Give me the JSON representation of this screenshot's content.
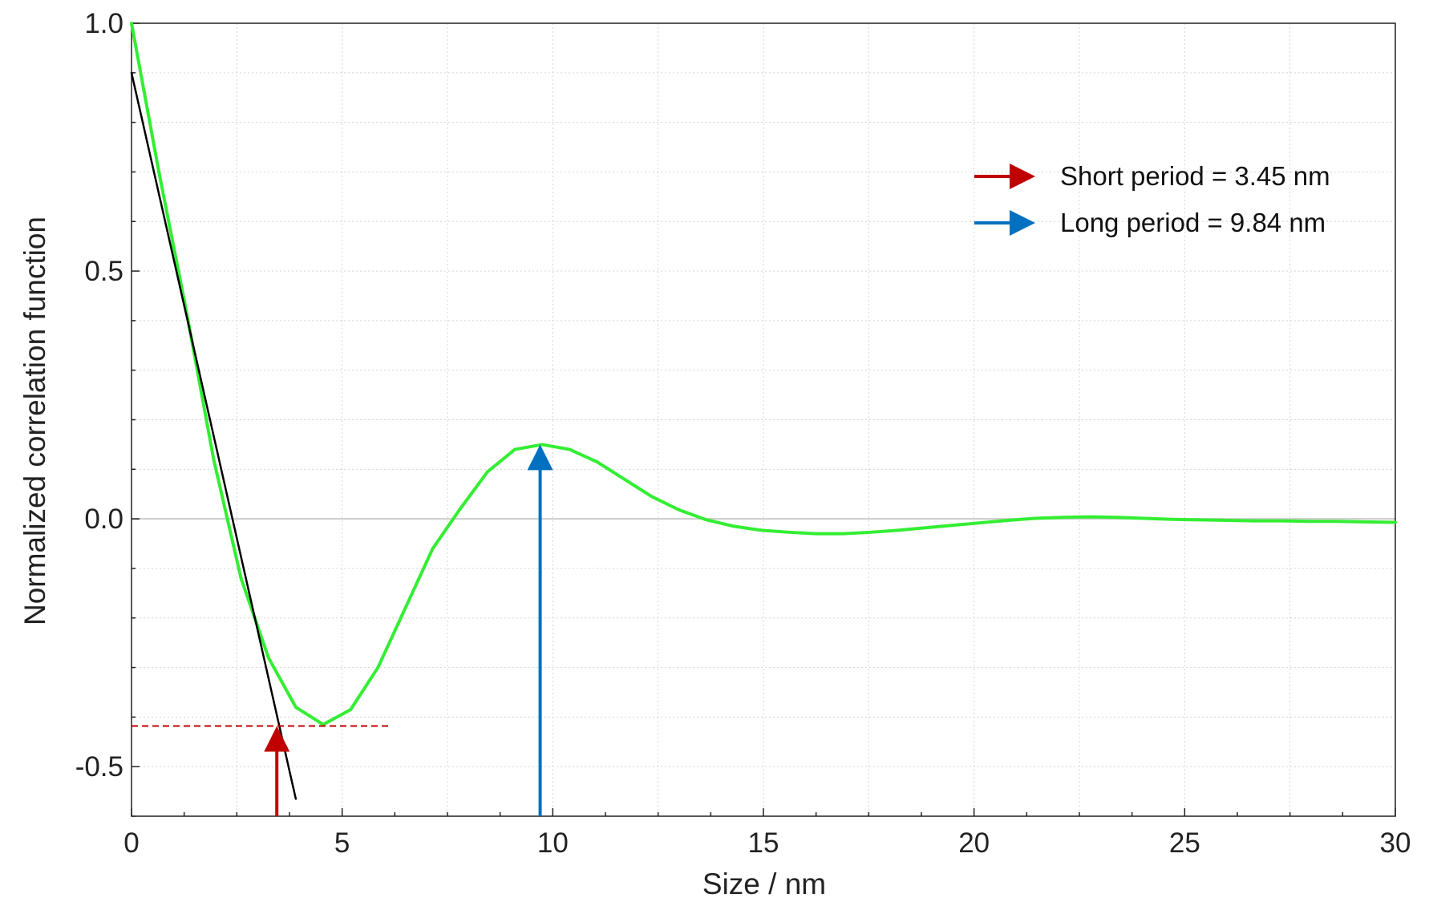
{
  "chart_data": {
    "type": "line",
    "xlabel": "Size / nm",
    "ylabel": "Normalized correlation function",
    "xlim": [
      0,
      30
    ],
    "ylim": [
      -0.6,
      1.0
    ],
    "x_ticks": [
      "0",
      "5",
      "10",
      "15",
      "20",
      "25",
      "30"
    ],
    "y_ticks": [
      "-0.5",
      "0.0",
      "0.5",
      "1.0"
    ],
    "grid": true,
    "legend_position": "top-right",
    "series": [
      {
        "color": "#33ee33",
        "x": [
          0,
          0.65,
          1.3,
          1.95,
          2.6,
          3.25,
          3.9,
          4.55,
          5.2,
          5.85,
          6.5,
          7.15,
          7.8,
          8.45,
          9.1,
          9.75,
          10.4,
          11.05,
          11.7,
          12.35,
          13.0,
          13.65,
          14.3,
          14.95,
          15.6,
          16.25,
          16.9,
          17.55,
          18.2,
          18.85,
          19.5,
          20.15,
          20.8,
          21.45,
          22.1,
          22.75,
          23.4,
          24.05,
          24.7,
          25.35,
          26.0,
          26.65,
          27.3,
          27.95,
          28.6,
          29.25,
          30
        ],
        "y": [
          1.0,
          0.7,
          0.42,
          0.12,
          -0.12,
          -0.28,
          -0.38,
          -0.415,
          -0.385,
          -0.3,
          -0.18,
          -0.06,
          0.02,
          0.095,
          0.14,
          0.15,
          0.14,
          0.115,
          0.08,
          0.045,
          0.018,
          -0.002,
          -0.015,
          -0.023,
          -0.027,
          -0.03,
          -0.03,
          -0.027,
          -0.023,
          -0.018,
          -0.013,
          -0.008,
          -0.003,
          0.001,
          0.003,
          0.004,
          0.003,
          0.001,
          -0.001,
          -0.002,
          -0.003,
          -0.004,
          -0.004,
          -0.005,
          -0.005,
          -0.006,
          -0.007
        ]
      },
      {
        "color": "#000000",
        "x": [
          0,
          3.9
        ],
        "y": [
          0.9,
          -0.565
        ]
      }
    ],
    "annotations": [
      {
        "type": "hline-dashed",
        "color": "#c00000",
        "y": -0.418,
        "x_from": 0,
        "x_to": 6.1
      },
      {
        "type": "vertical-arrow",
        "color": "#c00000",
        "x": 3.45,
        "y_from": -0.6,
        "y_to": -0.418
      },
      {
        "type": "vertical-arrow",
        "color": "#0070c0",
        "x": 9.7,
        "y_from": -0.6,
        "y_to": 0.15
      }
    ],
    "legend": [
      {
        "label": "Short period =  3.45 nm",
        "color": "#c00000"
      },
      {
        "label": "Long period =  9.84 nm",
        "color": "#0070c0"
      }
    ]
  }
}
